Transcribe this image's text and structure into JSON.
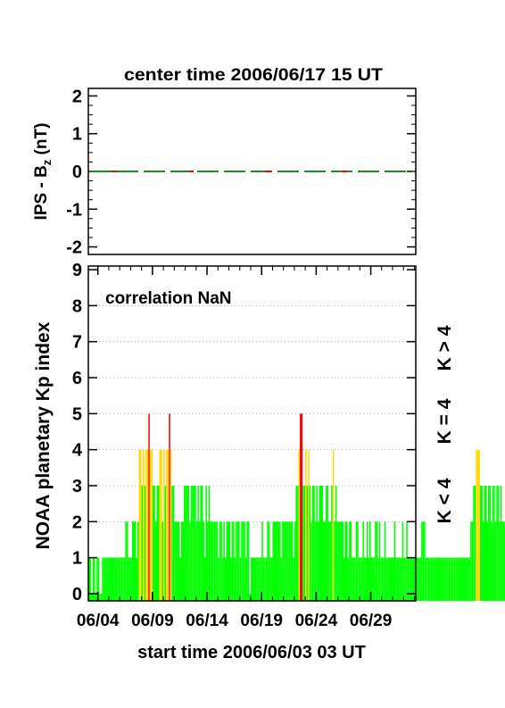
{
  "chart_data": [
    {
      "type": "line",
      "title": "center time 2006/06/17 15 UT",
      "ylabel_main": "IPS - B",
      "ylabel_sub": "z",
      "ylabel_unit": " (nT)",
      "ylim": [
        -2.2,
        2.2
      ],
      "yticks": [
        2,
        1,
        0,
        -1,
        -2
      ],
      "series": [
        {
          "values": [
            0,
            0
          ],
          "style": "dashed",
          "colors": [
            "#1a8f1a",
            "#ff0000"
          ]
        }
      ]
    },
    {
      "type": "bar",
      "ylabel": "NOAA planetary Kp index",
      "ylim": [
        -0.2,
        9.1
      ],
      "yticks": [
        9,
        8,
        7,
        6,
        5,
        4,
        3,
        2,
        1,
        0
      ],
      "annotation": "correlation NaN",
      "xlabel": "start time 2006/06/03 03 UT",
      "xticklabels": [
        "06/04",
        "06/09",
        "06/14",
        "06/19",
        "06/24",
        "06/29"
      ],
      "xtick_days": [
        21,
        141,
        261,
        381,
        501,
        621
      ],
      "x_range_hours": [
        0,
        720
      ],
      "bar_width_hours": 3,
      "kp_3hourly": [
        1,
        1,
        0,
        1,
        1,
        0,
        1,
        1,
        0,
        0,
        1,
        1,
        1,
        1,
        1,
        1,
        1,
        1,
        1,
        1,
        1,
        1,
        1,
        1,
        1,
        1,
        1,
        2,
        2,
        1,
        1,
        1,
        2,
        2,
        2,
        1,
        2,
        4,
        4,
        3,
        4,
        3,
        4,
        4,
        5,
        4,
        4,
        3,
        3,
        2,
        3,
        3,
        4,
        4,
        2,
        4,
        3,
        4,
        4,
        5,
        4,
        3,
        3,
        2,
        2,
        2,
        2,
        1,
        2,
        2,
        3,
        3,
        3,
        3,
        2,
        3,
        3,
        3,
        3,
        2,
        3,
        2,
        3,
        3,
        2,
        1,
        3,
        2,
        3,
        2,
        2,
        2,
        2,
        2,
        2,
        1,
        2,
        2,
        1,
        2,
        1,
        2,
        2,
        2,
        1,
        2,
        2,
        1,
        2,
        2,
        2,
        1,
        2,
        2,
        2,
        1,
        2,
        2,
        0,
        1,
        1,
        1,
        1,
        1,
        1,
        1,
        1,
        2,
        1,
        1,
        1,
        2,
        2,
        1,
        1,
        2,
        2,
        2,
        2,
        2,
        2,
        1,
        2,
        2,
        2,
        2,
        2,
        2,
        2,
        2,
        1,
        2,
        3,
        3,
        4,
        5,
        5,
        3,
        3,
        4,
        3,
        4,
        3,
        2,
        3,
        3,
        2,
        3,
        2,
        3,
        3,
        3,
        2,
        2,
        3,
        3,
        2,
        2,
        3,
        4,
        2,
        3,
        2,
        2,
        2,
        2,
        2,
        1,
        2,
        2,
        1,
        2,
        2,
        1,
        1,
        1,
        2,
        2,
        1,
        1,
        1,
        2,
        1,
        1,
        2,
        1,
        2,
        1,
        1,
        1,
        2,
        2,
        1,
        2,
        1,
        1,
        1,
        2,
        1,
        1,
        1,
        1,
        1,
        1,
        2,
        1,
        1,
        1,
        1,
        1,
        2,
        1,
        1,
        2,
        1,
        1,
        1,
        1,
        1,
        1,
        1,
        1,
        1,
        1,
        2,
        2,
        2,
        1,
        1,
        1,
        1,
        1,
        1,
        1,
        1,
        1,
        1,
        1,
        1,
        1,
        1,
        1,
        1,
        1,
        1,
        1,
        1,
        1,
        1,
        1,
        1,
        1,
        1,
        1,
        1,
        1,
        1,
        1,
        1,
        1,
        2,
        2,
        3,
        3,
        4,
        4,
        4,
        3,
        3,
        2,
        3,
        3,
        2,
        3,
        3,
        2,
        3,
        3,
        2,
        3,
        3,
        2,
        3,
        2,
        2,
        2,
        2,
        2,
        2,
        1,
        2,
        1,
        2,
        1,
        1,
        1
      ],
      "legend": [
        {
          "label": "K > 4",
          "color": "#ff0000"
        },
        {
          "label": "K = 4",
          "color": "#ffd700"
        },
        {
          "label": "K < 4",
          "color": "#00ff00"
        }
      ]
    }
  ]
}
